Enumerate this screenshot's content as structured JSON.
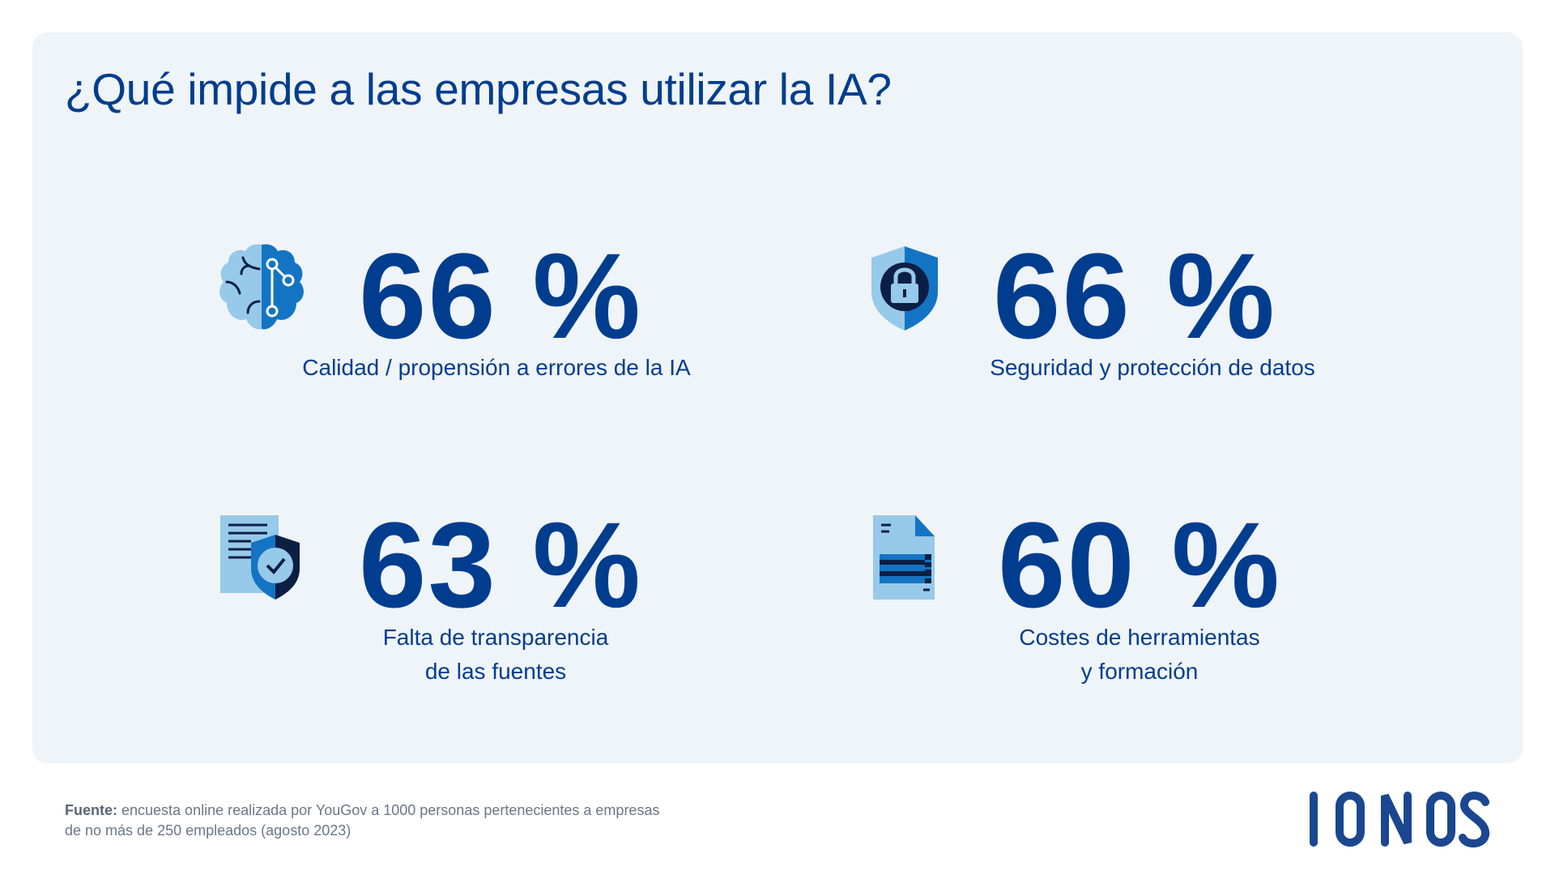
{
  "title": "¿Qué impide a las empresas utilizar la IA?",
  "colors": {
    "primary": "#003d8f",
    "light_blue": "#97c9ea",
    "mid_blue": "#1474c4",
    "dark_navy": "#0b1f44",
    "card_bg": "#eff4f8"
  },
  "stats": [
    {
      "icon": "brain-circuit-icon",
      "value": "66 %",
      "label_lines": [
        "Calidad / propensión a errores de la IA"
      ]
    },
    {
      "icon": "shield-lock-icon",
      "value": "66 %",
      "label_lines": [
        "Seguridad y protección de datos"
      ]
    },
    {
      "icon": "document-shield-check-icon",
      "value": "63 %",
      "label_lines": [
        "Falta de transparencia",
        "de las fuentes"
      ]
    },
    {
      "icon": "document-table-icon",
      "value": "60 %",
      "label_lines": [
        "Costes de herramientas",
        "y formación"
      ]
    }
  ],
  "source": {
    "prefix": "Fuente:",
    "line1": " encuesta online realizada por YouGov a 1000 personas pertenecientes a empresas",
    "line2": "de no más de 250 empleados (agosto 2023)"
  },
  "logo": "IONOS"
}
